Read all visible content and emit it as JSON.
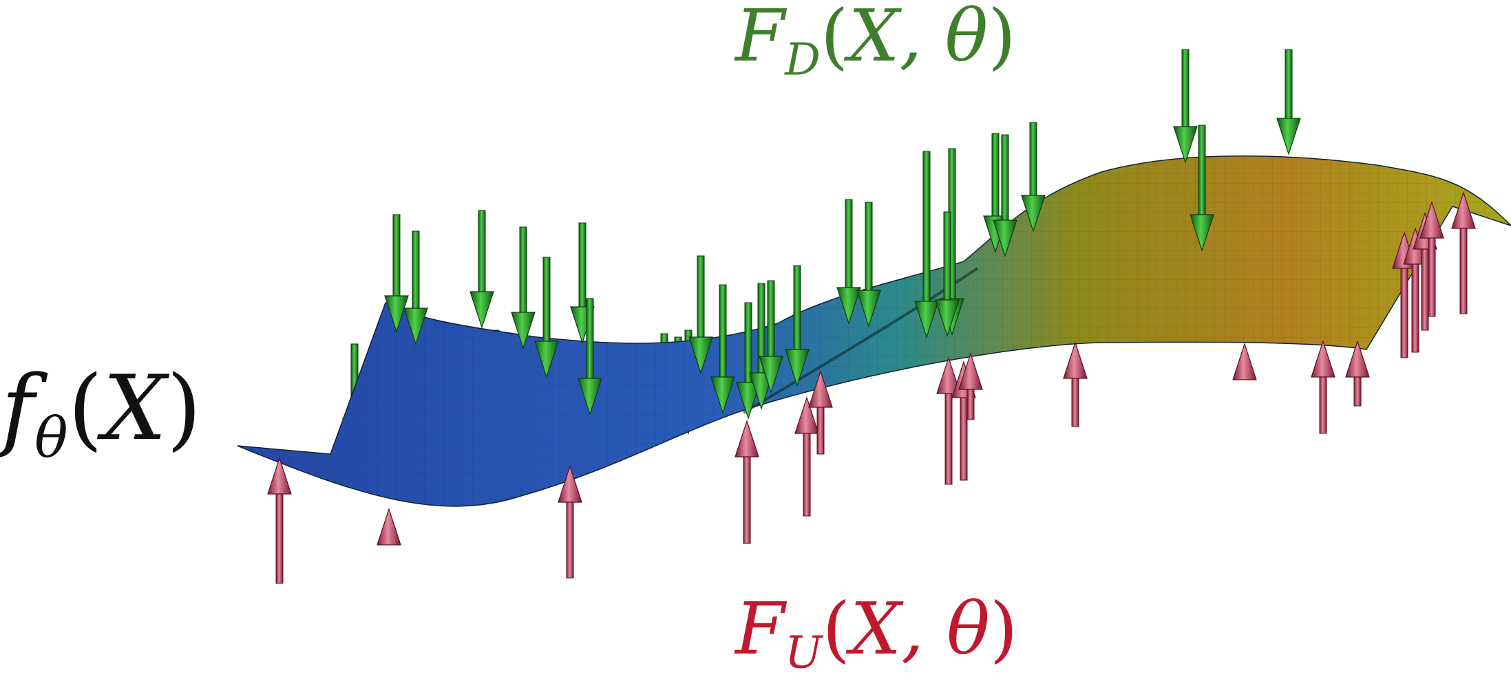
{
  "labels": {
    "down_force": {
      "symbol": "F",
      "sub": "D",
      "args": "X, θ"
    },
    "up_force": {
      "symbol": "F",
      "sub": "U",
      "args": "X, θ"
    },
    "function": {
      "symbol": "f",
      "sub": "θ",
      "args": "X"
    }
  },
  "colors": {
    "down_arrow": "#1f8a22",
    "up_arrow": "#c23a5a",
    "surface_low": "#2344a8",
    "surface_mid": "#2f8a7a",
    "surface_high": "#a9a41a",
    "down_label": "#3f7f2c",
    "up_label": "#c0182c"
  }
}
